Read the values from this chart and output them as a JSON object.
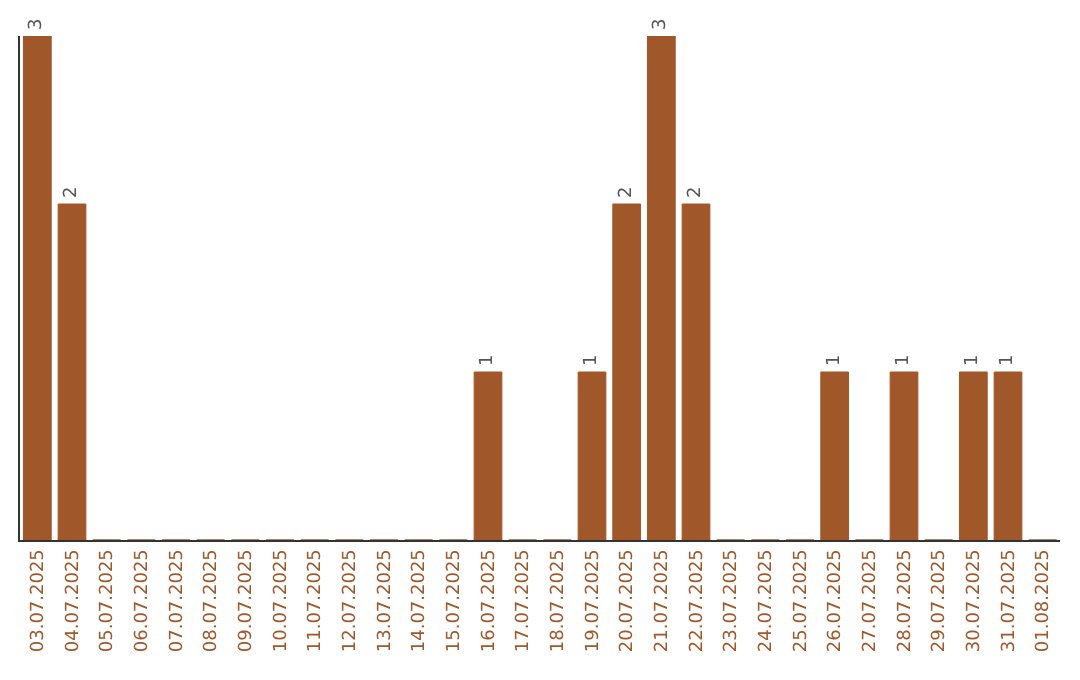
{
  "chart_data": {
    "type": "bar",
    "categories": [
      "03.07.2025",
      "04.07.2025",
      "05.07.2025",
      "06.07.2025",
      "07.07.2025",
      "08.07.2025",
      "09.07.2025",
      "10.07.2025",
      "11.07.2025",
      "12.07.2025",
      "13.07.2025",
      "14.07.2025",
      "15.07.2025",
      "16.07.2025",
      "17.07.2025",
      "18.07.2025",
      "19.07.2025",
      "20.07.2025",
      "21.07.2025",
      "22.07.2025",
      "23.07.2025",
      "24.07.2025",
      "25.07.2025",
      "26.07.2025",
      "27.07.2025",
      "28.07.2025",
      "29.07.2025",
      "30.07.2025",
      "31.07.2025",
      "01.08.2025"
    ],
    "values": [
      3,
      2,
      0,
      0,
      0,
      0,
      0,
      0,
      0,
      0,
      0,
      0,
      0,
      1,
      0,
      0,
      1,
      2,
      3,
      2,
      0,
      0,
      0,
      1,
      0,
      1,
      0,
      1,
      1,
      0
    ],
    "value_labels": [
      "3",
      "2",
      null,
      null,
      null,
      null,
      null,
      null,
      null,
      null,
      null,
      null,
      null,
      "1",
      null,
      null,
      "1",
      "2",
      "3",
      "2",
      null,
      null,
      null,
      "1",
      null,
      "1",
      null,
      "1",
      "1",
      null
    ],
    "color": "#a0572a",
    "ylim": [
      0,
      3
    ],
    "tick_labels": "x",
    "legend": false
  }
}
